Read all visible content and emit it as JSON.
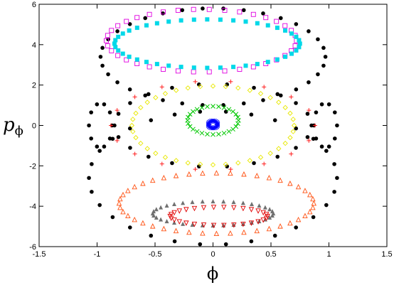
{
  "chart_data": {
    "type": "scatter",
    "title": "",
    "xlabel": "ϕ",
    "ylabel_main": "p",
    "ylabel_sub": "ϕ",
    "xlim": [
      -1.5,
      1.5
    ],
    "ylim": [
      -6,
      6
    ],
    "x_ticks": [
      -1.5,
      -1,
      -0.5,
      0,
      0.5,
      1,
      1.5
    ],
    "x_tick_labels": [
      "-1.5",
      "-1",
      "-0.5",
      "0",
      "0.5",
      "1",
      "1.5"
    ],
    "y_ticks": [
      -6,
      -4,
      -2,
      0,
      2,
      4,
      6
    ],
    "y_tick_labels": [
      "-6",
      "-4",
      "-2",
      "0",
      "2",
      "4",
      "6"
    ],
    "grid": false,
    "legend": "none",
    "series": [
      {
        "marker": "filled-circle",
        "color": "#000000",
        "shape": "loops",
        "loops": [
          {
            "cx": 0,
            "cy": 3.4,
            "rx": 0.97,
            "ry": 2.4,
            "n": 34
          },
          {
            "cx": 0,
            "cy": -2.6,
            "rx": 1.07,
            "ry": 3.3,
            "n": 30
          },
          {
            "cx": -0.97,
            "cy": 0,
            "rx": 0.1,
            "ry": 1.1,
            "n": 10
          },
          {
            "cx": 0.97,
            "cy": 0,
            "rx": 0.1,
            "ry": 1.1,
            "n": 10
          },
          {
            "cx": 0,
            "cy": 0,
            "rx": 0.85,
            "ry": 2.05,
            "n": 22
          }
        ]
      },
      {
        "marker": "open-square",
        "color": "#e000e0",
        "shape": "loops",
        "loops": [
          {
            "cx": -0.1,
            "cy": 4.2,
            "rx": 0.82,
            "ry": 1.55,
            "n": 38
          }
        ]
      },
      {
        "marker": "filled-square",
        "color": "#00d8e8",
        "shape": "loops",
        "loops": [
          {
            "cx": -0.05,
            "cy": 4.05,
            "rx": 0.8,
            "ry": 1.2,
            "n": 44
          }
        ]
      },
      {
        "marker": "plus",
        "color": "#ff2020",
        "shape": "loops",
        "loops": [
          {
            "cx": 0,
            "cy": 0,
            "rx": 0.88,
            "ry": 2.2,
            "n": 18
          }
        ]
      },
      {
        "marker": "open-diamond",
        "color": "#e8e800",
        "shape": "loops",
        "loops": [
          {
            "cx": 0,
            "cy": 0,
            "rx": 0.7,
            "ry": 1.95,
            "n": 40
          }
        ]
      },
      {
        "marker": "cross",
        "color": "#00c800",
        "shape": "loops",
        "loops": [
          {
            "cx": 0,
            "cy": 0.25,
            "rx": 0.22,
            "ry": 0.7,
            "n": 28
          }
        ]
      },
      {
        "marker": "star",
        "color": "#0000ff",
        "shape": "loops",
        "loops": [
          {
            "cx": 0,
            "cy": 0.05,
            "rx": 0.04,
            "ry": 0.18,
            "n": 20
          }
        ]
      },
      {
        "marker": "open-triangle",
        "color": "#ff5010",
        "shape": "loops",
        "loops": [
          {
            "cx": 0.03,
            "cy": -3.85,
            "rx": 0.84,
            "ry": 1.5,
            "n": 44
          }
        ]
      },
      {
        "marker": "filled-triangle",
        "color": "#707070",
        "shape": "loops",
        "loops": [
          {
            "cx": 0.0,
            "cy": -4.35,
            "rx": 0.52,
            "ry": 0.6,
            "n": 36
          }
        ]
      },
      {
        "marker": "open-down-triangle",
        "color": "#e00000",
        "shape": "loops",
        "loops": [
          {
            "cx": 0.05,
            "cy": -4.5,
            "rx": 0.42,
            "ry": 0.45,
            "n": 30
          }
        ]
      }
    ]
  }
}
